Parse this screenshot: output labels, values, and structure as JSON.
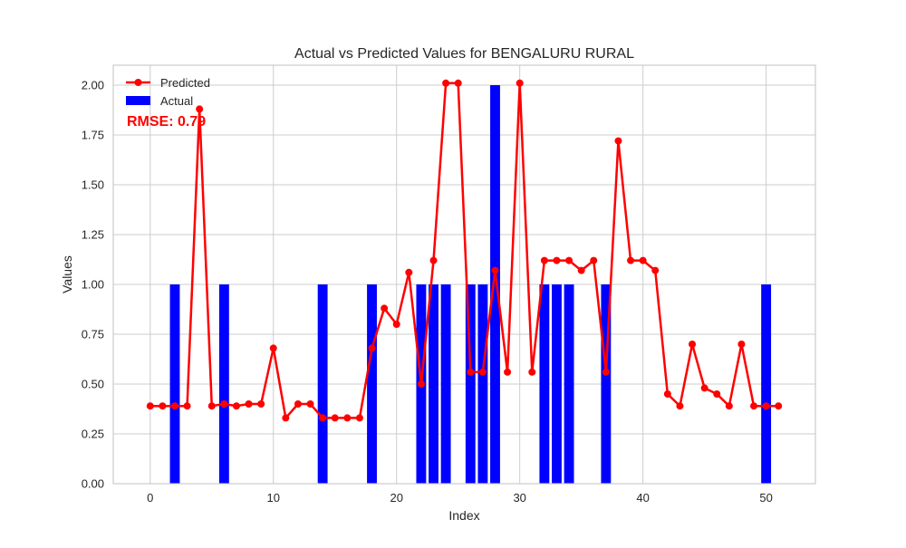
{
  "chart_data": {
    "type": "bar",
    "title": "Actual vs Predicted Values for BENGALURU RURAL",
    "xlabel": "Index",
    "ylabel": "Values",
    "xlim": [
      -3,
      54
    ],
    "ylim": [
      0,
      2.1
    ],
    "xticks": [
      0,
      10,
      20,
      30,
      40,
      50
    ],
    "yticks": [
      0.0,
      0.25,
      0.5,
      0.75,
      1.0,
      1.25,
      1.5,
      1.75,
      2.0
    ],
    "ytick_labels": [
      "0.00",
      "0.25",
      "0.50",
      "0.75",
      "1.00",
      "1.25",
      "1.50",
      "1.75",
      "2.00"
    ],
    "grid": true,
    "legend_position": "top-left",
    "annotation": "RMSE: 0.79",
    "colors": {
      "predicted": "#ff0000",
      "actual": "#0000ff",
      "annotation": "#ff0000",
      "grid": "#cccccc"
    },
    "series": [
      {
        "name": "Predicted",
        "kind": "line",
        "x": [
          0,
          1,
          2,
          3,
          4,
          5,
          6,
          7,
          8,
          9,
          10,
          11,
          12,
          13,
          14,
          15,
          16,
          17,
          18,
          19,
          20,
          21,
          22,
          23,
          24,
          25,
          26,
          27,
          28,
          29,
          30,
          31,
          32,
          33,
          34,
          35,
          36,
          37,
          38,
          39,
          40,
          41,
          42,
          43,
          44,
          45,
          46,
          47,
          48,
          49,
          50,
          51
        ],
        "values": [
          0.39,
          0.39,
          0.39,
          0.39,
          1.88,
          0.39,
          0.4,
          0.39,
          0.4,
          0.4,
          0.68,
          0.33,
          0.4,
          0.4,
          0.33,
          0.33,
          0.33,
          0.33,
          0.68,
          0.88,
          0.8,
          1.06,
          0.5,
          1.12,
          2.01,
          2.01,
          0.56,
          0.56,
          1.07,
          0.56,
          2.01,
          0.56,
          1.12,
          1.12,
          1.12,
          1.07,
          1.12,
          0.56,
          1.72,
          1.12,
          1.12,
          1.07,
          0.45,
          0.39,
          0.7,
          0.48,
          0.45,
          0.39,
          0.7,
          0.39,
          0.39,
          0.39
        ]
      },
      {
        "name": "Actual",
        "kind": "bar",
        "x": [
          0,
          1,
          2,
          3,
          4,
          5,
          6,
          7,
          8,
          9,
          10,
          11,
          12,
          13,
          14,
          15,
          16,
          17,
          18,
          19,
          20,
          21,
          22,
          23,
          24,
          25,
          26,
          27,
          28,
          29,
          30,
          31,
          32,
          33,
          34,
          35,
          36,
          37,
          38,
          39,
          40,
          41,
          42,
          43,
          44,
          45,
          46,
          47,
          48,
          49,
          50,
          51
        ],
        "values": [
          0,
          0,
          1,
          0,
          0,
          0,
          1,
          0,
          0,
          0,
          0,
          0,
          0,
          0,
          1,
          0,
          0,
          0,
          1,
          0,
          0,
          0,
          1,
          1,
          1,
          0,
          1,
          1,
          2,
          0,
          0,
          0,
          1,
          1,
          1,
          0,
          0,
          1,
          0,
          0,
          0,
          0,
          0,
          0,
          0,
          0,
          0,
          0,
          0,
          0,
          1,
          0
        ]
      }
    ]
  }
}
